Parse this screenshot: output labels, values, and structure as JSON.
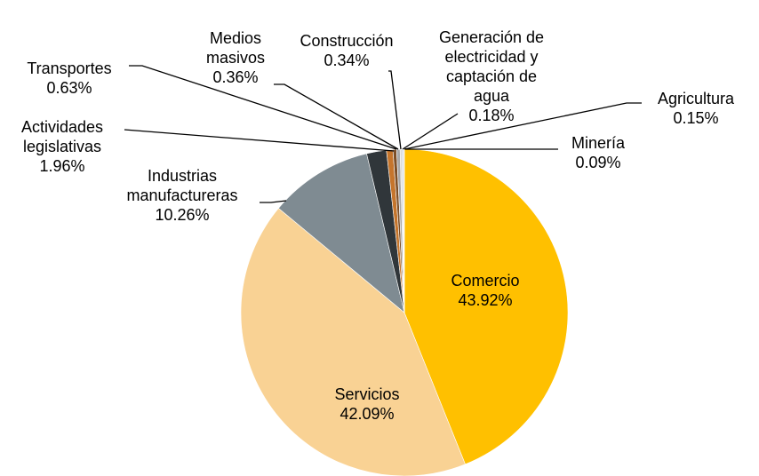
{
  "chart_data": {
    "type": "pie",
    "categories": [
      "Comercio",
      "Servicios",
      "Industrias manufactureras",
      "Actividades legislativas",
      "Transportes",
      "Medios masivos",
      "Construcción",
      "Generación de electricidad y captación de agua",
      "Agricultura",
      "Minería"
    ],
    "values": [
      43.92,
      42.09,
      10.26,
      1.96,
      0.63,
      0.36,
      0.34,
      0.18,
      0.15,
      0.09
    ],
    "value_labels": [
      "43.92%",
      "42.09%",
      "10.26%",
      "1.96%",
      "0.63%",
      "0.36%",
      "0.34%",
      "0.18%",
      "0.15%",
      "0.09%"
    ],
    "colors": [
      "#ffc000",
      "#f9d294",
      "#7f8b92",
      "#30363a",
      "#c5752c",
      "#7d4f27",
      "#a8a8a8",
      "#d9d9d9",
      "#bfc9d6",
      "#e8e8e8"
    ]
  }
}
